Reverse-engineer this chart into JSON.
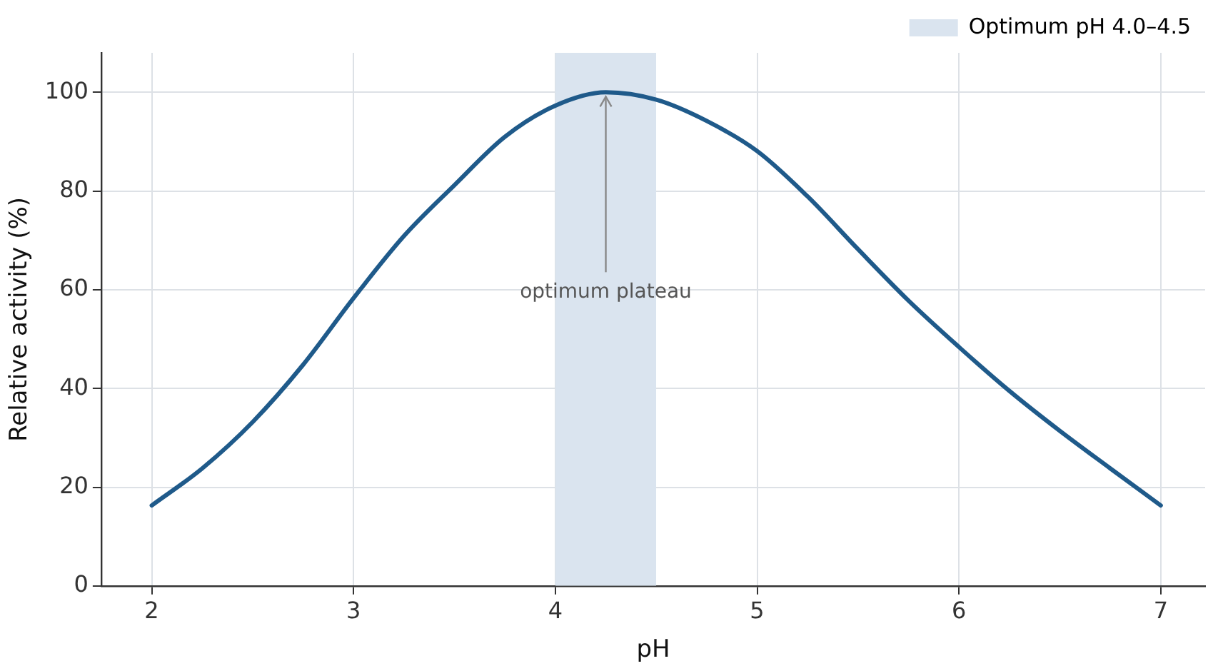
{
  "chart_data": {
    "type": "line",
    "xlabel": "pH",
    "ylabel": "Relative activity (%)",
    "x": [
      2,
      2.25,
      2.5,
      2.75,
      3,
      3.25,
      3.5,
      3.75,
      4,
      4.25,
      4.5,
      4.75,
      5,
      5.25,
      5.5,
      5.75,
      6,
      6.25,
      6.5,
      6.75,
      7
    ],
    "series": [
      {
        "color": "#1f5a8a",
        "values": [
          16.3,
          23.8,
          33.2,
          44.8,
          58.3,
          70.9,
          81.2,
          91,
          97.3,
          100,
          98.5,
          94.2,
          88.1,
          78.9,
          68.2,
          57.8,
          48.4,
          39.5,
          31.4,
          23.8,
          16.3
        ]
      }
    ],
    "xlim": [
      1.75,
      7.22
    ],
    "xticks": [
      2,
      3,
      4,
      5,
      6,
      7
    ],
    "ylim": [
      0,
      108
    ],
    "yticks": [
      0,
      20,
      40,
      60,
      80,
      100
    ],
    "grid": true,
    "legend": "top right",
    "marker": "none",
    "line_style": "solid",
    "bands": [
      {
        "axis": "x",
        "from": 4.0,
        "to": 4.5,
        "label": "Optimum pH 4.0–4.5",
        "color": "#dae4ef"
      }
    ],
    "annotations": [
      {
        "text": "optimum plateau",
        "x": 4.25,
        "y": 100
      }
    ]
  }
}
